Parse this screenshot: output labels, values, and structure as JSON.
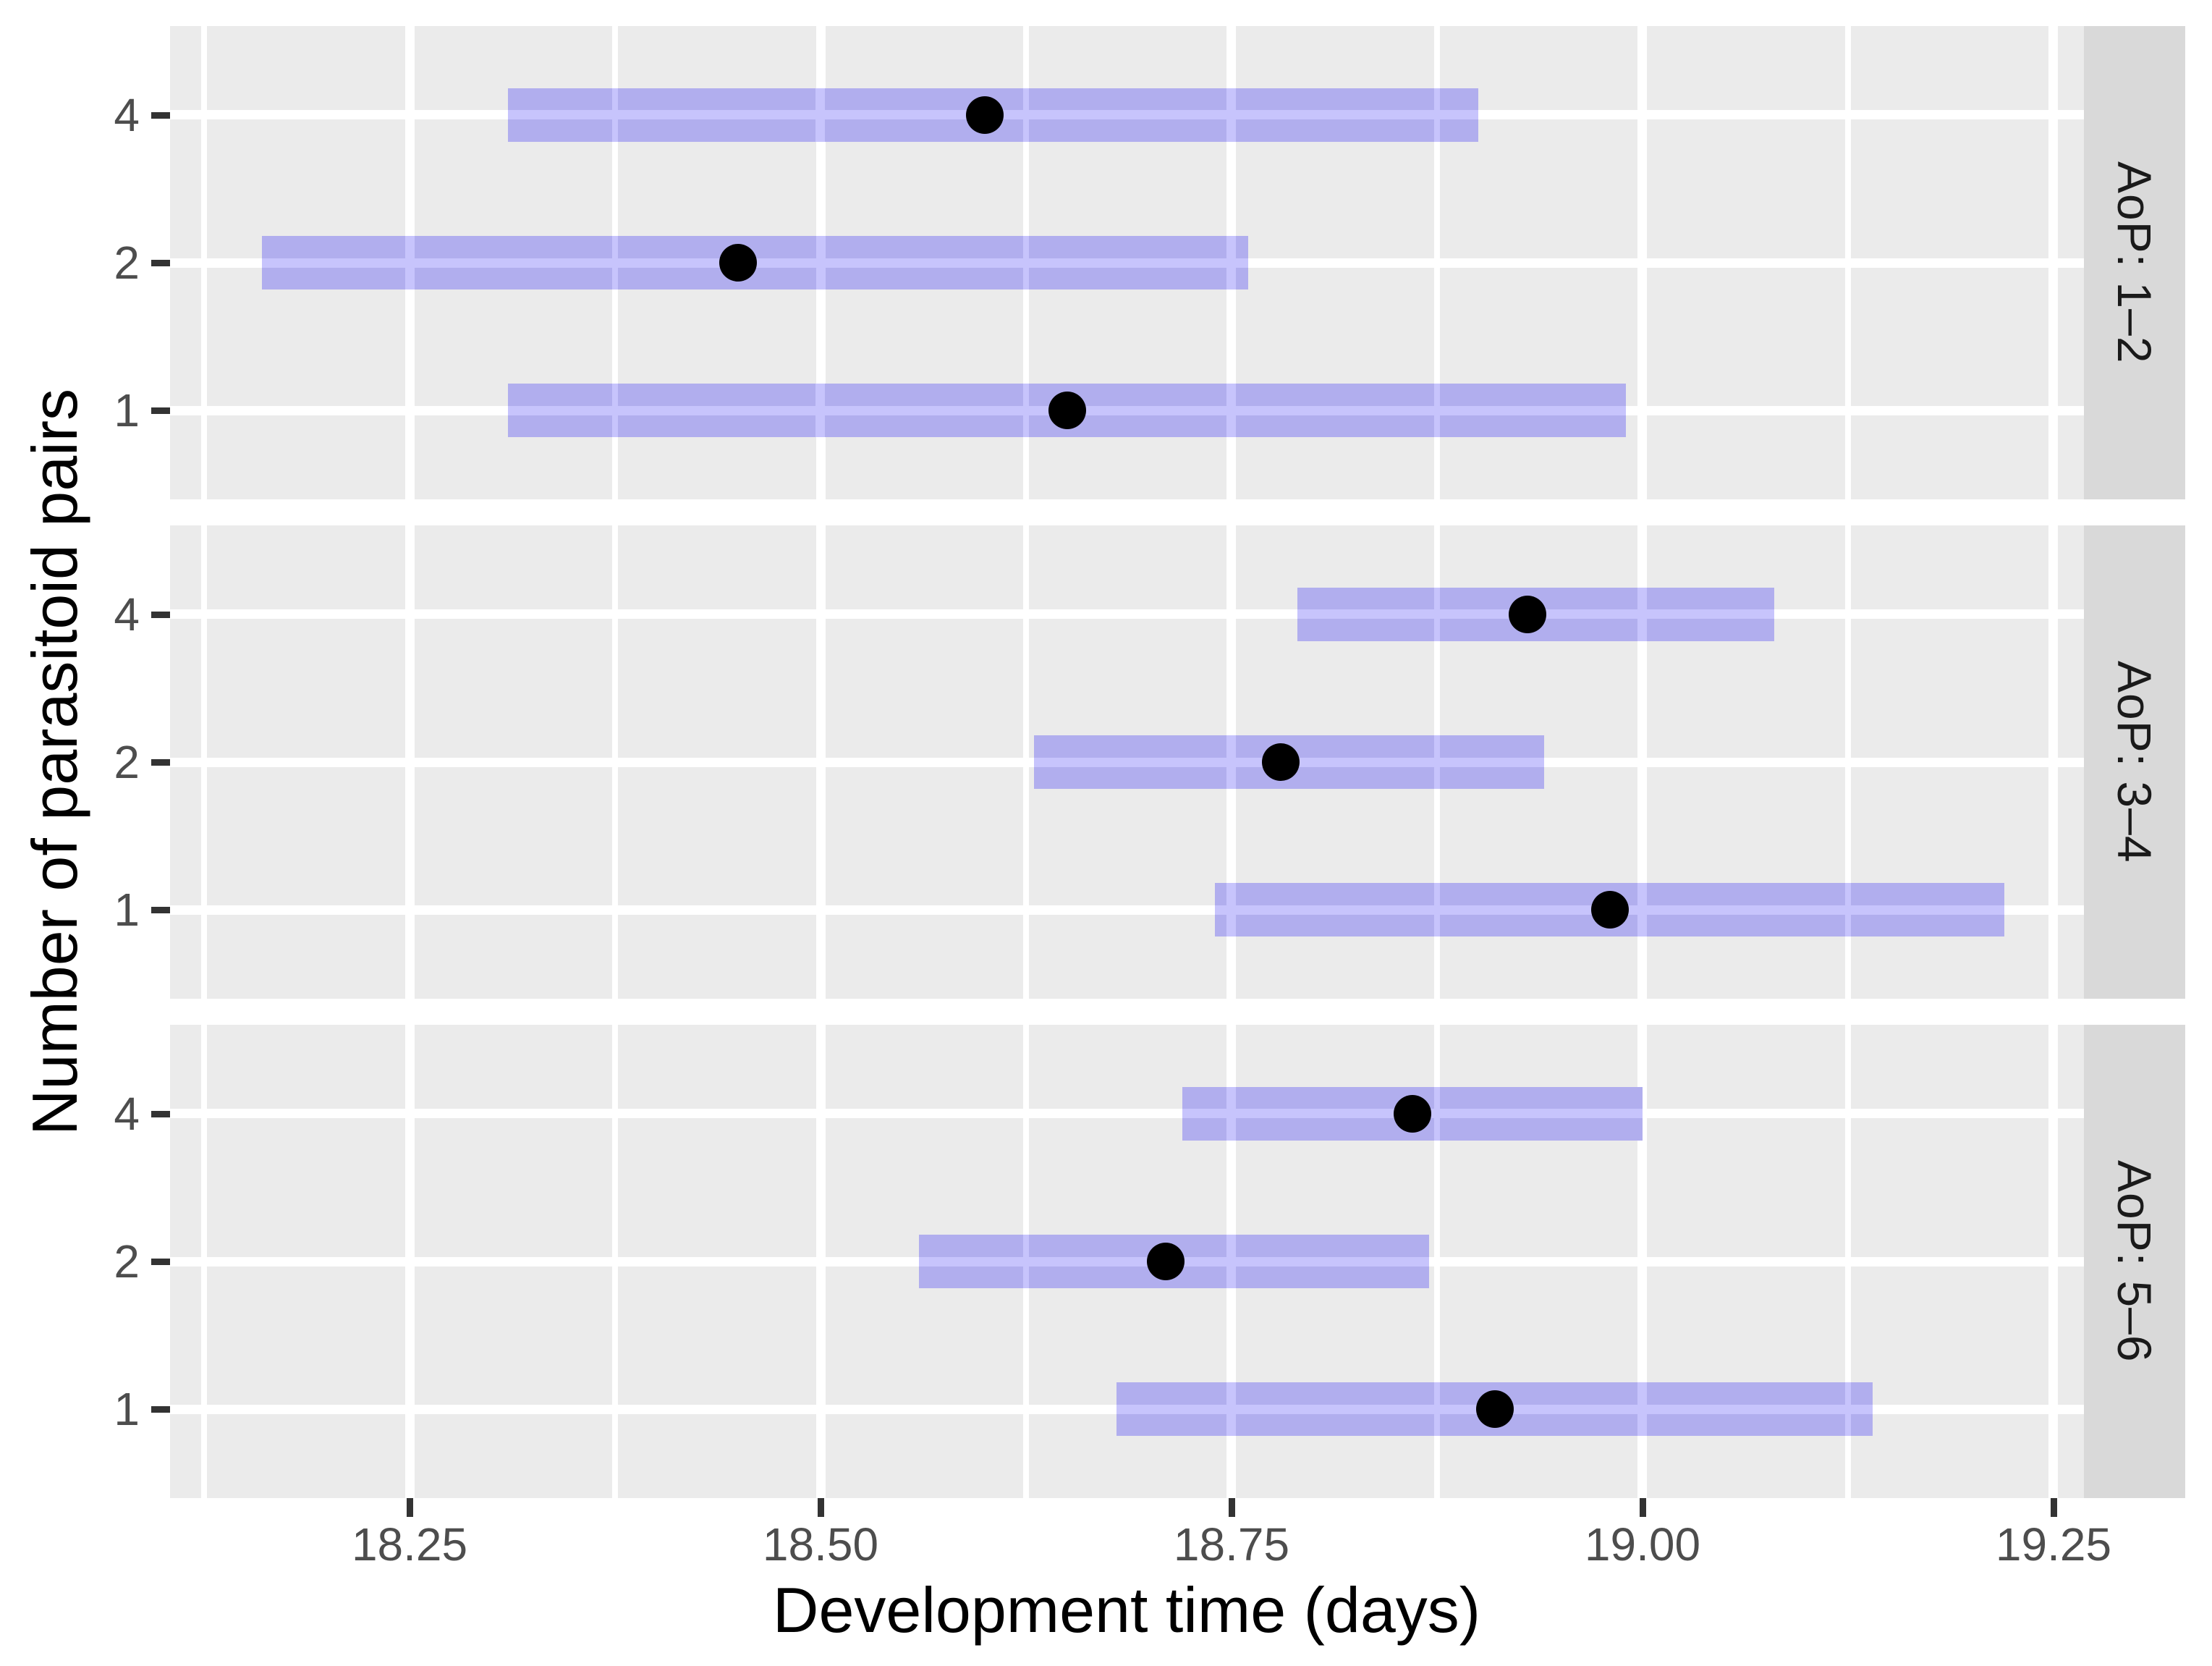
{
  "axes": {
    "x": {
      "title": "Development time (days)",
      "tick_labels": [
        "18.25",
        "18.50",
        "18.75",
        "19.00",
        "19.25"
      ],
      "tick_values": [
        18.25,
        18.5,
        18.75,
        19.0,
        19.25
      ],
      "minor_values": [
        18.125,
        18.375,
        18.625,
        18.875,
        19.125
      ],
      "min": 18.1043,
      "max": 19.2685
    },
    "y": {
      "title": "Number of parasitoid pairs",
      "tick_labels": [
        "4",
        "2",
        "1"
      ]
    }
  },
  "colors": {
    "panel_bg": "#ebebeb",
    "grid": "#ffffff",
    "bar_fill": "#b1aeee",
    "bar_stripe": "#c7c4fc",
    "point": "#000000",
    "strip_bg": "#d9d9d9",
    "strip_text": "#1a1a1a",
    "tick_label": "#4d4d4d",
    "axis_title": "#000000",
    "tick_mark": "#333333"
  },
  "chart_data": {
    "type": "bar",
    "subtype": "horizontal_interval_with_point",
    "title": "",
    "xlabel": "Development time (days)",
    "ylabel": "Number of parasitoid pairs",
    "x_ticks": [
      18.25,
      18.5,
      18.75,
      19.0,
      19.25
    ],
    "xlim": [
      18.1,
      19.27
    ],
    "y_categories": [
      "4",
      "2",
      "1"
    ],
    "legend": "none",
    "grid": "on",
    "facets": [
      {
        "label": "AoP: 1–2",
        "rows": [
          {
            "pairs": "4",
            "lower": 18.31,
            "upper": 18.9,
            "estimate": 18.6
          },
          {
            "pairs": "2",
            "lower": 18.16,
            "upper": 18.76,
            "estimate": 18.45
          },
          {
            "pairs": "1",
            "lower": 18.31,
            "upper": 18.99,
            "estimate": 18.65
          }
        ]
      },
      {
        "label": "AoP: 3–4",
        "rows": [
          {
            "pairs": "4",
            "lower": 18.79,
            "upper": 19.08,
            "estimate": 18.93
          },
          {
            "pairs": "2",
            "lower": 18.63,
            "upper": 18.94,
            "estimate": 18.78
          },
          {
            "pairs": "1",
            "lower": 18.74,
            "upper": 19.22,
            "estimate": 18.98
          }
        ]
      },
      {
        "label": "AoP: 5–6",
        "rows": [
          {
            "pairs": "4",
            "lower": 18.72,
            "upper": 19.0,
            "estimate": 18.86
          },
          {
            "pairs": "2",
            "lower": 18.56,
            "upper": 18.87,
            "estimate": 18.71
          },
          {
            "pairs": "1",
            "lower": 18.68,
            "upper": 19.14,
            "estimate": 18.91
          }
        ]
      }
    ]
  }
}
